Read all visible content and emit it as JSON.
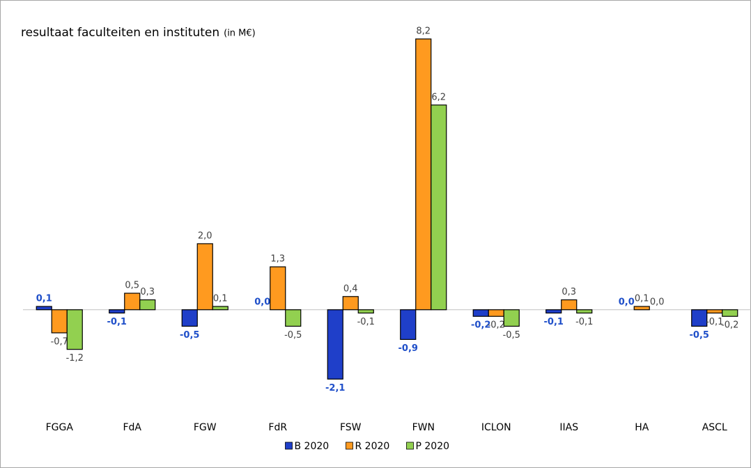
{
  "chart_data": {
    "type": "bar",
    "title": "resultaat faculteiten en instituten",
    "subtitle": "(in M€)",
    "categories": [
      "FGGA",
      "FdA",
      "FGW",
      "FdR",
      "FSW",
      "FWN",
      "ICLON",
      "IIAS",
      "HA",
      "ASCL"
    ],
    "series": [
      {
        "name": "B 2020",
        "color": "#1f3fc9",
        "label_color": "#1f4fc9",
        "label_bold": true,
        "values": [
          0.1,
          -0.1,
          -0.5,
          0.0,
          -2.1,
          -0.9,
          -0.2,
          -0.1,
          0.0,
          -0.5
        ],
        "value_labels": [
          "0,1",
          "-0,1",
          "-0,5",
          "0,0",
          "-2,1",
          "-0,9",
          "-0,2",
          "-0,1",
          "0,0",
          "-0,5"
        ]
      },
      {
        "name": "R 2020",
        "color": "#ff9a1f",
        "label_color": "#404040",
        "label_bold": false,
        "values": [
          -0.7,
          0.5,
          2.0,
          1.3,
          0.4,
          8.2,
          -0.2,
          0.3,
          0.1,
          -0.1
        ],
        "value_labels": [
          "-0,7",
          "0,5",
          "2,0",
          "1,3",
          "0,4",
          "8,2",
          "-0,2",
          "0,3",
          "0,1",
          "-0,1"
        ]
      },
      {
        "name": "P 2020",
        "color": "#92d050",
        "label_color": "#404040",
        "label_bold": false,
        "values": [
          -1.2,
          0.3,
          0.1,
          -0.5,
          -0.1,
          6.2,
          -0.5,
          -0.1,
          0.0,
          -0.2
        ],
        "value_labels": [
          "-1,2",
          "0,3",
          "0,1",
          "-0,5",
          "-0,1",
          "6,2",
          "-0,5",
          "-0,1",
          "0,0",
          "-0,2"
        ]
      }
    ],
    "ylim": [
      -3,
      9
    ],
    "grid": false,
    "legend": "bottom"
  }
}
